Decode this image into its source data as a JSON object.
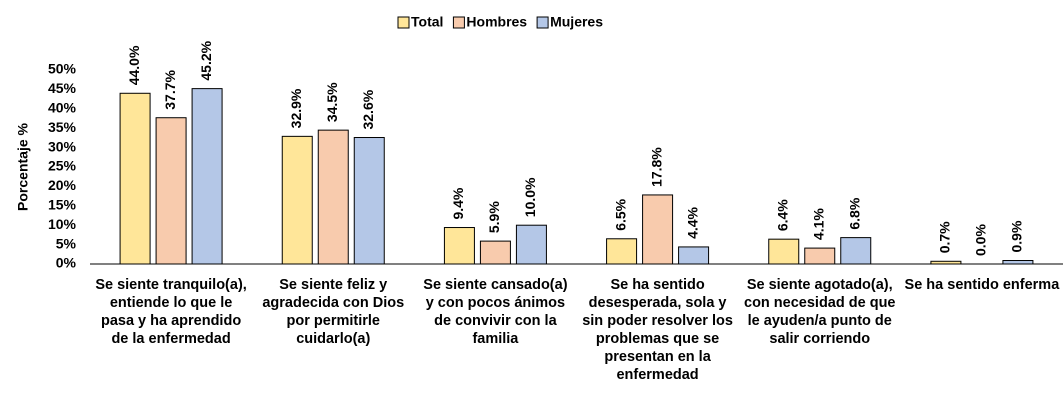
{
  "chart_data": {
    "type": "bar",
    "y_label": "Porcentaje %",
    "categories": [
      "Se siente tranquilo(a), entiende lo que le pasa y ha aprendido de la enfermedad",
      "Se siente feliz y agradecida con Dios por permitirle cuidarlo(a)",
      "Se siente cansado(a) y con pocos ánimos de convivir con la familia",
      "Se ha sentido desesperada, sola y sin poder resolver los problemas que se presentan en la enfermedad",
      "Se siente agotado(a), con necesidad de que le ayuden/a punto de salir corriendo",
      "Se ha sentido enferma"
    ],
    "series": [
      {
        "name": "Total",
        "color": "#ffe699",
        "values": [
          44.0,
          32.9,
          9.4,
          6.5,
          6.4,
          0.7
        ],
        "value_labels": [
          "44.0%",
          "32.9%",
          "9.4%",
          "6.5%",
          "6.4%",
          "0.7%"
        ]
      },
      {
        "name": "Hombres",
        "color": "#f8cbad",
        "values": [
          37.7,
          34.5,
          5.9,
          17.8,
          4.1,
          0.0
        ],
        "value_labels": [
          "37.7%",
          "34.5%",
          "5.9%",
          "17.8%",
          "4.1%",
          "0.0%"
        ]
      },
      {
        "name": "Mujeres",
        "color": "#b4c7e7",
        "values": [
          45.2,
          32.6,
          10.0,
          4.4,
          6.8,
          0.9
        ],
        "value_labels": [
          "45.2%",
          "32.6%",
          "10.0%",
          "4.4%",
          "6.8%",
          "0.9%"
        ]
      }
    ],
    "ylim": [
      0,
      50
    ],
    "yticks": [
      {
        "value": 0,
        "label": "0%"
      },
      {
        "value": 5,
        "label": "5%"
      },
      {
        "value": 10,
        "label": "10%"
      },
      {
        "value": 15,
        "label": "15%"
      },
      {
        "value": 20,
        "label": "20%"
      },
      {
        "value": 25,
        "label": "25%"
      },
      {
        "value": 30,
        "label": "30%"
      },
      {
        "value": 35,
        "label": "35%"
      },
      {
        "value": 40,
        "label": "40%"
      },
      {
        "value": 45,
        "label": "45%"
      },
      {
        "value": 50,
        "label": "50%"
      }
    ],
    "grid": false,
    "legend": "top"
  }
}
